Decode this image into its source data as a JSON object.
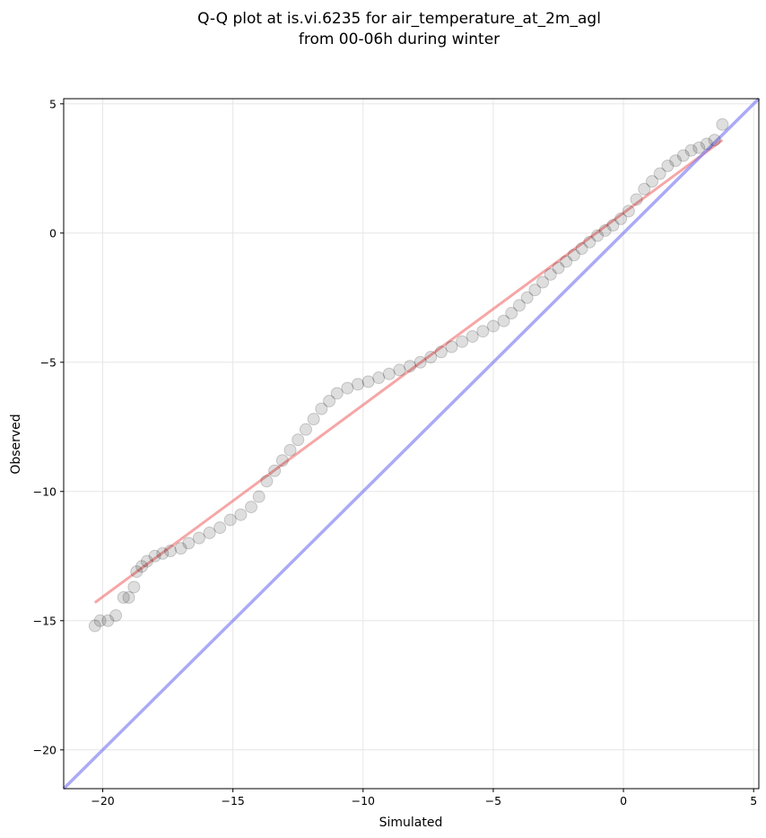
{
  "chart_data": {
    "type": "scatter",
    "title": [
      "Q-Q plot at is.vi.6235 for air_temperature_at_2m_agl",
      "from 00-06h during winter"
    ],
    "xlabel": "Simulated",
    "ylabel": "Observed",
    "xlim": [
      -21.5,
      5.2
    ],
    "ylim": [
      -21.5,
      5.2
    ],
    "xticks": [
      -20,
      -15,
      -10,
      -5,
      0,
      5
    ],
    "yticks": [
      -20,
      -15,
      -10,
      -5,
      0,
      5
    ],
    "xtick_labels": [
      "−20",
      "−15",
      "−10",
      "−5",
      "0",
      "5"
    ],
    "ytick_labels": [
      "−20",
      "−15",
      "−10",
      "−5",
      "0",
      "5"
    ],
    "grid": true,
    "quantiles": [
      [
        -20.3,
        -15.2
      ],
      [
        -20.1,
        -15.0
      ],
      [
        -19.8,
        -15.0
      ],
      [
        -19.5,
        -14.8
      ],
      [
        -19.2,
        -14.1
      ],
      [
        -19.0,
        -14.1
      ],
      [
        -18.8,
        -13.7
      ],
      [
        -18.7,
        -13.1
      ],
      [
        -18.5,
        -12.9
      ],
      [
        -18.3,
        -12.7
      ],
      [
        -18.0,
        -12.5
      ],
      [
        -17.7,
        -12.4
      ],
      [
        -17.4,
        -12.3
      ],
      [
        -17.0,
        -12.2
      ],
      [
        -16.7,
        -12.0
      ],
      [
        -16.3,
        -11.8
      ],
      [
        -15.9,
        -11.6
      ],
      [
        -15.5,
        -11.4
      ],
      [
        -15.1,
        -11.1
      ],
      [
        -14.7,
        -10.9
      ],
      [
        -14.3,
        -10.6
      ],
      [
        -14.0,
        -10.2
      ],
      [
        -13.7,
        -9.6
      ],
      [
        -13.4,
        -9.2
      ],
      [
        -13.1,
        -8.8
      ],
      [
        -12.8,
        -8.4
      ],
      [
        -12.5,
        -8.0
      ],
      [
        -12.2,
        -7.6
      ],
      [
        -11.9,
        -7.2
      ],
      [
        -11.6,
        -6.8
      ],
      [
        -11.3,
        -6.5
      ],
      [
        -11.0,
        -6.2
      ],
      [
        -10.6,
        -6.0
      ],
      [
        -10.2,
        -5.85
      ],
      [
        -9.8,
        -5.75
      ],
      [
        -9.4,
        -5.6
      ],
      [
        -9.0,
        -5.45
      ],
      [
        -8.6,
        -5.3
      ],
      [
        -8.2,
        -5.15
      ],
      [
        -7.8,
        -5.0
      ],
      [
        -7.4,
        -4.8
      ],
      [
        -7.0,
        -4.6
      ],
      [
        -6.6,
        -4.4
      ],
      [
        -6.2,
        -4.2
      ],
      [
        -5.8,
        -4.0
      ],
      [
        -5.4,
        -3.8
      ],
      [
        -5.0,
        -3.6
      ],
      [
        -4.6,
        -3.4
      ],
      [
        -4.3,
        -3.1
      ],
      [
        -4.0,
        -2.8
      ],
      [
        -3.7,
        -2.5
      ],
      [
        -3.4,
        -2.2
      ],
      [
        -3.1,
        -1.9
      ],
      [
        -2.8,
        -1.6
      ],
      [
        -2.5,
        -1.35
      ],
      [
        -2.2,
        -1.1
      ],
      [
        -1.9,
        -0.85
      ],
      [
        -1.6,
        -0.6
      ],
      [
        -1.3,
        -0.35
      ],
      [
        -1.0,
        -0.1
      ],
      [
        -0.7,
        0.1
      ],
      [
        -0.4,
        0.3
      ],
      [
        -0.1,
        0.55
      ],
      [
        0.2,
        0.85
      ],
      [
        0.5,
        1.3
      ],
      [
        0.8,
        1.7
      ],
      [
        1.1,
        2.0
      ],
      [
        1.4,
        2.3
      ],
      [
        1.7,
        2.6
      ],
      [
        2.0,
        2.8
      ],
      [
        2.3,
        3.0
      ],
      [
        2.6,
        3.2
      ],
      [
        2.9,
        3.3
      ],
      [
        3.2,
        3.45
      ],
      [
        3.5,
        3.6
      ],
      [
        3.8,
        4.2
      ]
    ],
    "fit_line": [
      [
        -20.3,
        -14.3
      ],
      [
        3.8,
        3.6
      ]
    ],
    "identity_line": [
      [
        -21.5,
        -21.5
      ],
      [
        5.2,
        5.2
      ]
    ],
    "colors": {
      "points": "#000000",
      "fit_line": "#f06b6b",
      "identity_line": "#7c7cf2",
      "grid": "#e6e6e6",
      "axes": "#000000"
    }
  }
}
